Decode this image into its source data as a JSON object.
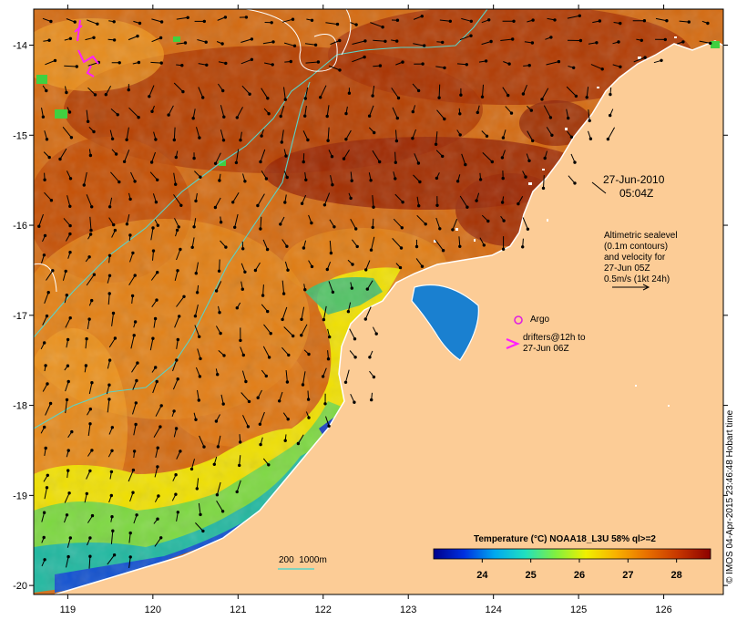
{
  "map": {
    "lon_range": [
      118.6,
      126.7
    ],
    "lat_range": [
      -20.1,
      -13.6
    ],
    "lon_ticks": [
      119,
      120,
      121,
      122,
      123,
      124,
      125,
      126
    ],
    "lat_ticks": [
      -14,
      -15,
      -16,
      -17,
      -18,
      -19,
      -20
    ],
    "colors": {
      "land": "#fccc96",
      "coast": "#ffffff",
      "contour_200_1000m": "#59d3c8",
      "arrows": "#000000",
      "argo": "#e020e0",
      "drifters": "#ff20ff"
    }
  },
  "annotations": {
    "date": "27-Jun-2010",
    "time": "05:04Z",
    "altimetry_lines": [
      "Altimetric sealevel",
      "(0.1m contours)",
      "and velocity for",
      "27-Jun 05Z",
      "0.5m/s (1kt 24h)"
    ],
    "argo_label": "Argo",
    "drifters_lines": [
      "drifters@12h to",
      "27-Jun 06Z"
    ],
    "contour_legend": "200  1000m"
  },
  "colorbar": {
    "title": "Temperature (°C) NOAA18_L3U 58% ql>=2",
    "range": [
      23,
      28.7
    ],
    "ticks": [
      24,
      25,
      26,
      27,
      28
    ],
    "colors": [
      "#00008c",
      "#0030e0",
      "#00a8f0",
      "#20e0c0",
      "#80f040",
      "#f0f000",
      "#f8b000",
      "#e87000",
      "#c83800",
      "#8c0000"
    ]
  },
  "credit": "© IMOS 04-Apr-2015 23:46:48 Hobart time"
}
